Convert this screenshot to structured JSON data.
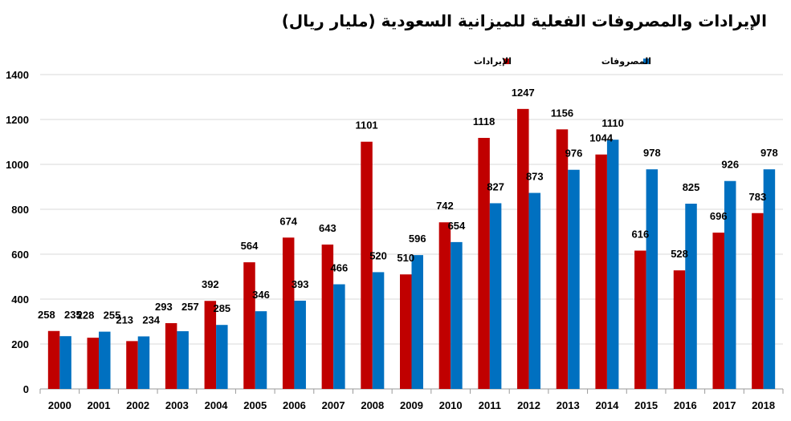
{
  "chart_data": {
    "type": "bar",
    "title": "الإيرادات والمصروفات الفعلية للميزانية السعودية (مليار ريال)",
    "categories": [
      "2000",
      "2001",
      "2002",
      "2003",
      "2004",
      "2005",
      "2006",
      "2007",
      "2008",
      "2009",
      "2010",
      "2011",
      "2012",
      "2013",
      "2014",
      "2015",
      "2016",
      "2017",
      "2018"
    ],
    "series": [
      {
        "name": "الإيرادات",
        "color": "#C00000",
        "values": [
          258,
          228,
          213,
          293,
          392,
          564,
          674,
          643,
          1101,
          510,
          742,
          1118,
          1247,
          1156,
          1044,
          616,
          528,
          696,
          783
        ]
      },
      {
        "name": "المصروفات",
        "color": "#0070C0",
        "values": [
          235,
          255,
          234,
          257,
          285,
          346,
          393,
          466,
          520,
          596,
          654,
          827,
          873,
          976,
          1110,
          978,
          825,
          926,
          978
        ]
      }
    ],
    "yticks": [
      0,
      200,
      400,
      600,
      800,
      1000,
      1200,
      1400
    ],
    "ylim": [
      0,
      1400
    ],
    "grid": true,
    "legend_position": "top-right",
    "data_labels": true
  }
}
